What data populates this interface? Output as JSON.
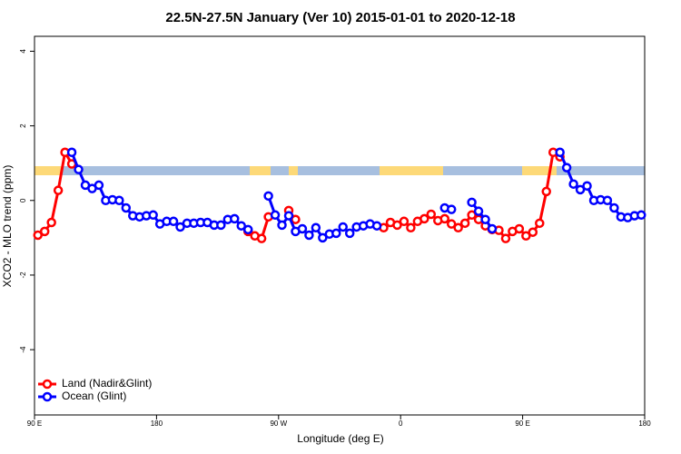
{
  "chart_data": {
    "type": "line",
    "title": "22.5N-27.5N January (Ver 10)   2015-01-01 to 2020-12-18",
    "x_label": "Longitude (deg E)",
    "y_label": "XCO2 - MLO trend (ppm)",
    "x": [
      92.5,
      97.5,
      102.5,
      107.5,
      112.5,
      117.5,
      122.5,
      127.5,
      132.5,
      137.5,
      142.5,
      147.5,
      152.5,
      157.5,
      162.5,
      167.5,
      172.5,
      177.5,
      182.5,
      187.5,
      192.5,
      197.5,
      202.5,
      207.5,
      212.5,
      217.5,
      222.5,
      227.5,
      232.5,
      237.5,
      242.5,
      247.5,
      252.5,
      257.5,
      262.5,
      267.5,
      272.5,
      277.5,
      282.5,
      287.5,
      292.5,
      297.5,
      302.5,
      307.5,
      312.5,
      317.5,
      322.5,
      327.5,
      332.5,
      337.5,
      342.5,
      347.5,
      352.5,
      357.5,
      362.5,
      367.5,
      372.5,
      377.5,
      382.5,
      387.5,
      392.5,
      397.5,
      402.5,
      407.5,
      412.5,
      417.5,
      422.5,
      427.5,
      432.5,
      437.5,
      442.5,
      447.5,
      452.5,
      457.5,
      462.5,
      467.5,
      472.5,
      477.5,
      482.5,
      487.5,
      492.5,
      497.5,
      502.5,
      507.5,
      512.5,
      517.5,
      522.5,
      527.5,
      532.5,
      537.5
    ],
    "series": [
      {
        "name": "Land (Nadir&Glint)",
        "color": "#ff0000",
        "values": [
          -0.93,
          -0.83,
          -0.59,
          0.27,
          1.29,
          0.98,
          null,
          null,
          null,
          null,
          null,
          null,
          null,
          null,
          null,
          null,
          null,
          null,
          null,
          null,
          null,
          null,
          null,
          null,
          null,
          null,
          null,
          null,
          null,
          null,
          null,
          -0.83,
          -0.95,
          -1.02,
          -0.44,
          null,
          null,
          -0.27,
          -0.51,
          null,
          null,
          null,
          null,
          null,
          null,
          null,
          null,
          null,
          null,
          null,
          null,
          -0.73,
          -0.59,
          -0.66,
          -0.56,
          -0.73,
          -0.56,
          -0.49,
          -0.37,
          -0.54,
          -0.49,
          -0.63,
          -0.73,
          -0.61,
          -0.39,
          -0.51,
          -0.68,
          -0.78,
          -0.8,
          -1.02,
          -0.83,
          -0.76,
          -0.95,
          -0.85,
          -0.61,
          0.24,
          1.29,
          1.17,
          null,
          null,
          null,
          null,
          null,
          null,
          null,
          null,
          null,
          null,
          null,
          null
        ]
      },
      {
        "name": "Ocean (Glint)",
        "color": "#0000ff",
        "values": [
          null,
          null,
          null,
          null,
          null,
          1.29,
          0.83,
          0.41,
          0.32,
          0.41,
          0,
          0.02,
          0,
          -0.2,
          -0.41,
          -0.44,
          -0.41,
          -0.39,
          -0.63,
          -0.56,
          -0.56,
          -0.71,
          -0.61,
          -0.61,
          -0.59,
          -0.59,
          -0.66,
          -0.66,
          -0.51,
          -0.49,
          -0.68,
          -0.78,
          null,
          null,
          0.12,
          -0.39,
          -0.66,
          -0.41,
          -0.83,
          -0.76,
          -0.93,
          -0.73,
          -1.0,
          -0.9,
          -0.88,
          -0.71,
          -0.88,
          -0.71,
          -0.68,
          -0.63,
          -0.68,
          null,
          null,
          null,
          null,
          null,
          null,
          null,
          null,
          null,
          -0.2,
          -0.24,
          null,
          null,
          -0.05,
          -0.29,
          -0.51,
          -0.76,
          null,
          null,
          null,
          null,
          null,
          null,
          null,
          null,
          null,
          1.29,
          0.88,
          0.44,
          0.29,
          0.39,
          0,
          0.02,
          0,
          -0.2,
          -0.44,
          -0.46,
          -0.41,
          -0.39
        ]
      }
    ],
    "xlim": [
      90,
      540
    ],
    "xticks": [
      {
        "value": 90,
        "label": "90 E"
      },
      180,
      {
        "value": 270,
        "label": "90 W"
      },
      {
        "value": 360,
        "label": "0"
      },
      {
        "value": 450,
        "label": "90 E"
      },
      {
        "value": 540,
        "label": "180"
      }
    ],
    "ylim": [
      -5.75,
      4.4
    ],
    "yticks": [
      -4,
      -2,
      0,
      2,
      4
    ],
    "grid": false,
    "legend": "lower left"
  }
}
